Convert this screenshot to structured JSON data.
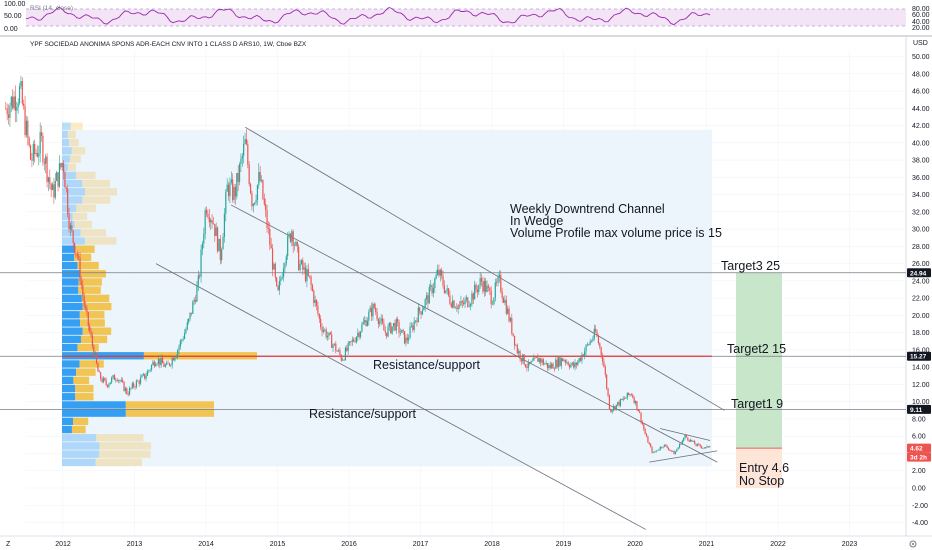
{
  "header": {
    "rsi_label": "RSI (14, close)",
    "symbol_line": "YPF SOCIEDAD ANONIMA SPONS ADR-EACH CNV INTO 1 CLASS D ARS10, 1W, Cboe BZX"
  },
  "rsi_axis": {
    "ticks": [
      "100.00",
      "50.00",
      "0.00"
    ],
    "right_ticks": [
      "80.00",
      "60.00",
      "40.00",
      "20.00"
    ]
  },
  "price_axis": {
    "unit": "USD"
  },
  "corner_left": "Z",
  "colors": {
    "up": "#26a69a",
    "down": "#ef5350",
    "rsi": "#9c27b0",
    "rsi_band": "#f3e5f5",
    "profile_up": "#2196f3",
    "profile_down": "#f2c040",
    "resistance": "#e53935",
    "target_zone": "#c8e6c9",
    "stop_zone": "#fde6d8",
    "lines": "#787b86",
    "box": "#e9f2fc"
  },
  "chart_data": {
    "type": "line",
    "title": "YPF SOCIEDAD ANONIMA SPONS ADR-EACH CNV INTO 1 CLASS D ARS10, 1W, Cboe BZX",
    "xlabel": "",
    "ylabel": "",
    "ylim": [
      -5,
      52
    ],
    "xlim": [
      2011.2,
      2023.5
    ],
    "y_ticks": [
      -4,
      -2,
      0,
      2,
      4,
      6,
      8,
      10,
      12,
      14,
      16,
      18,
      20,
      22,
      24,
      26,
      28,
      30,
      32,
      34,
      36,
      38,
      40,
      42,
      44,
      46,
      48,
      50
    ],
    "x_ticks": [
      2012,
      2013,
      2014,
      2015,
      2016,
      2017,
      2018,
      2019,
      2020,
      2021,
      2022,
      2023
    ],
    "series": [
      {
        "values": [
          [
            2011.2,
            44
          ],
          [
            2011.4,
            46
          ],
          [
            2011.55,
            38
          ],
          [
            2011.7,
            40
          ],
          [
            2011.85,
            34
          ],
          [
            2012.0,
            38
          ],
          [
            2012.1,
            30
          ],
          [
            2012.2,
            27
          ],
          [
            2012.3,
            21
          ],
          [
            2012.4,
            17
          ],
          [
            2012.5,
            13
          ],
          [
            2012.6,
            12
          ],
          [
            2012.75,
            13
          ],
          [
            2012.9,
            11
          ],
          [
            2013.0,
            12
          ],
          [
            2013.15,
            13
          ],
          [
            2013.3,
            15
          ],
          [
            2013.45,
            14
          ],
          [
            2013.6,
            16
          ],
          [
            2013.75,
            19
          ],
          [
            2013.9,
            24
          ],
          [
            2014.0,
            33
          ],
          [
            2014.1,
            31
          ],
          [
            2014.2,
            27
          ],
          [
            2014.3,
            35
          ],
          [
            2014.4,
            34
          ],
          [
            2014.55,
            40
          ],
          [
            2014.65,
            33
          ],
          [
            2014.75,
            36
          ],
          [
            2014.9,
            28
          ],
          [
            2015.0,
            22
          ],
          [
            2015.1,
            27
          ],
          [
            2015.2,
            30
          ],
          [
            2015.3,
            26
          ],
          [
            2015.45,
            24
          ],
          [
            2015.6,
            19
          ],
          [
            2015.75,
            17
          ],
          [
            2015.9,
            15
          ],
          [
            2016.05,
            17
          ],
          [
            2016.2,
            19
          ],
          [
            2016.35,
            21
          ],
          [
            2016.5,
            18
          ],
          [
            2016.65,
            19
          ],
          [
            2016.8,
            17
          ],
          [
            2016.95,
            20
          ],
          [
            2017.1,
            22
          ],
          [
            2017.25,
            25
          ],
          [
            2017.4,
            22
          ],
          [
            2017.55,
            21
          ],
          [
            2017.7,
            22
          ],
          [
            2017.85,
            24
          ],
          [
            2018.0,
            22
          ],
          [
            2018.1,
            24
          ],
          [
            2018.2,
            21
          ],
          [
            2018.35,
            16
          ],
          [
            2018.5,
            14
          ],
          [
            2018.65,
            15
          ],
          [
            2018.8,
            14
          ],
          [
            2019.0,
            15
          ],
          [
            2019.15,
            14
          ],
          [
            2019.3,
            16
          ],
          [
            2019.45,
            18
          ],
          [
            2019.55,
            15
          ],
          [
            2019.65,
            9
          ],
          [
            2019.8,
            10
          ],
          [
            2019.95,
            11
          ],
          [
            2020.05,
            9
          ],
          [
            2020.15,
            6
          ],
          [
            2020.25,
            4
          ],
          [
            2020.4,
            5
          ],
          [
            2020.55,
            4
          ],
          [
            2020.7,
            6
          ],
          [
            2020.85,
            5
          ],
          [
            2021.0,
            4.6
          ],
          [
            2021.05,
            5
          ]
        ]
      }
    ],
    "annotations": {
      "channel_text": [
        "Weekly Downtrend Channel",
        "In Wedge",
        "Volume Profile max volume price is 15"
      ],
      "resistance_label_1": "Resistance/support",
      "resistance_label_2": "Resistance/support",
      "target3": "Target3  25",
      "target2": "Target2 15",
      "target1": "Target1 9",
      "entry": "Entry 4.6",
      "stop": "No Stop"
    },
    "horizontal_levels": {
      "target3": 24.94,
      "target2": 15.27,
      "target1": 9.11,
      "entry": 4.62
    },
    "price_badges": [
      "24.94",
      "15.27",
      "9.11",
      "4.62",
      "3d 2h"
    ],
    "grid": true,
    "legend": "none"
  }
}
